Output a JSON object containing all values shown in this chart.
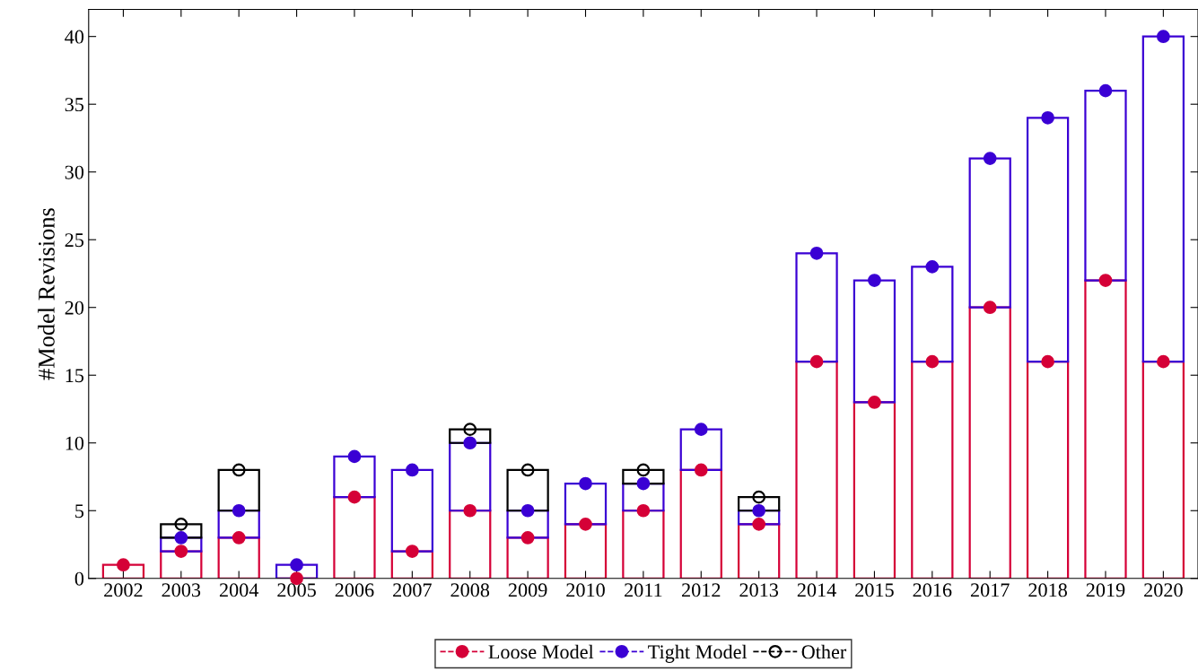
{
  "chart_data": {
    "type": "bar",
    "stacked": true,
    "ylabel": "#Model Revisions",
    "categories": [
      "2002",
      "2003",
      "2004",
      "2005",
      "2006",
      "2007",
      "2008",
      "2009",
      "2010",
      "2011",
      "2012",
      "2013",
      "2014",
      "2015",
      "2016",
      "2017",
      "2018",
      "2019",
      "2020"
    ],
    "series": [
      {
        "name": "Loose Model",
        "color": "#d50037",
        "values": [
          1,
          2,
          3,
          0,
          6,
          2,
          5,
          3,
          4,
          5,
          8,
          4,
          16,
          13,
          16,
          20,
          16,
          22,
          16
        ]
      },
      {
        "name": "Tight Model",
        "color": "#3a00d4",
        "values": [
          null,
          1,
          2,
          1,
          3,
          6,
          5,
          2,
          3,
          2,
          3,
          1,
          8,
          9,
          7,
          11,
          18,
          14,
          24
        ]
      },
      {
        "name": "Other",
        "color": "#000000",
        "values": [
          null,
          1,
          3,
          null,
          null,
          null,
          1,
          3,
          null,
          1,
          null,
          1,
          null,
          null,
          null,
          null,
          null,
          null,
          null
        ]
      },
      {
        "type": "scatter",
        "color": "#d50037",
        "values": [
          1,
          2,
          3,
          0,
          6,
          2,
          5,
          3,
          4,
          5,
          8,
          4,
          16,
          13,
          16,
          20,
          16,
          22,
          16
        ]
      },
      {
        "type": "scatter",
        "color": "#3a00d4",
        "values": [
          null,
          3,
          5,
          1,
          9,
          8,
          10,
          5,
          7,
          7,
          11,
          5,
          24,
          22,
          23,
          31,
          34,
          36,
          40
        ]
      },
      {
        "type": "scatter",
        "color": "#000000",
        "values": [
          null,
          4,
          8,
          null,
          null,
          null,
          11,
          8,
          null,
          8,
          null,
          6,
          null,
          null,
          null,
          null,
          null,
          null,
          null
        ]
      }
    ],
    "ylim": [
      0,
      42
    ],
    "yticks": [
      0,
      5,
      10,
      15,
      20,
      25,
      30,
      35,
      40
    ],
    "grid": false,
    "legend": "bottom",
    "marker": "circle",
    "line_style": "dashed"
  }
}
